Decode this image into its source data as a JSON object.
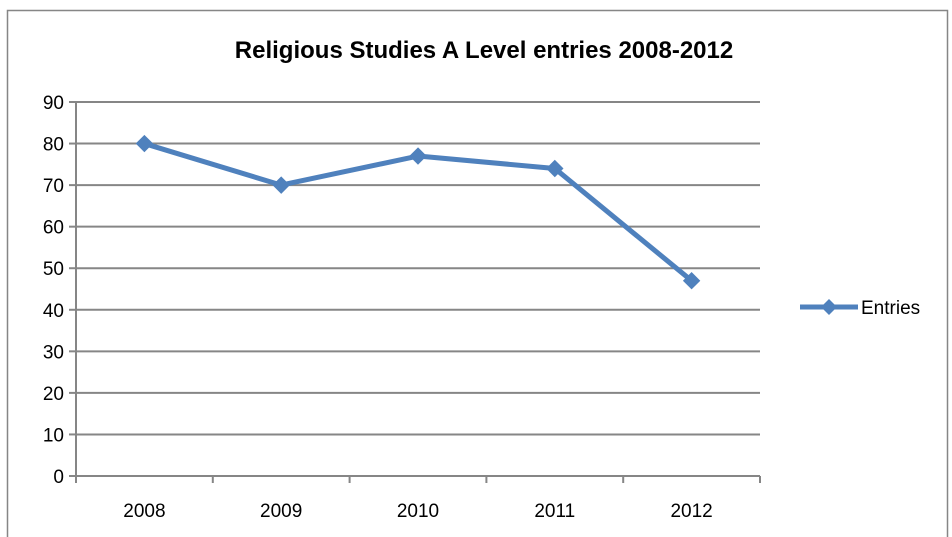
{
  "chart_data": {
    "type": "line",
    "title": "Religious Studies A Level entries 2008-2012",
    "xlabel": "",
    "ylabel": "",
    "categories": [
      "2008",
      "2009",
      "2010",
      "2011",
      "2012"
    ],
    "series": [
      {
        "name": "Entries",
        "values": [
          80,
          70,
          77,
          74,
          47
        ],
        "color": "#4F81BD",
        "marker": "diamond"
      }
    ],
    "ylim": [
      0,
      90
    ],
    "yticks": [
      "0",
      "10",
      "20",
      "30",
      "40",
      "50",
      "60",
      "70",
      "80",
      "90"
    ],
    "grid": true,
    "legend": "right"
  },
  "colors": {
    "series_line": "#4F81BD",
    "gridline": "#868686",
    "axis": "#868686",
    "frame": "#868686"
  }
}
